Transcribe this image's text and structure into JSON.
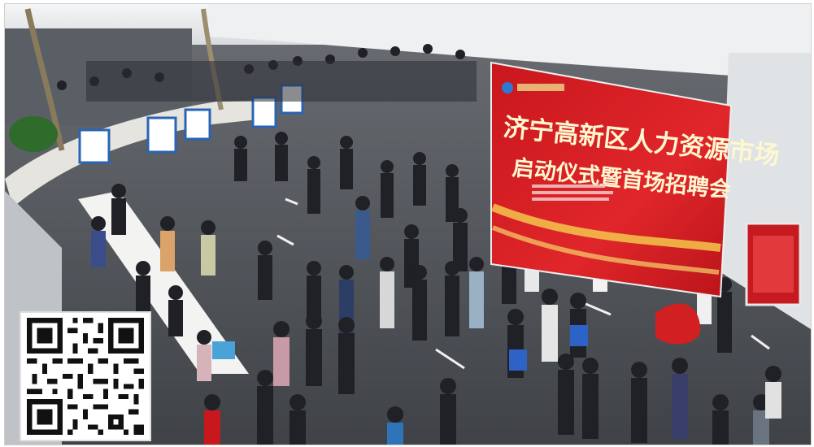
{
  "banner": {
    "line1": "济宁高新区人力资源市场",
    "line2": "启动仪式暨首场招聘会"
  },
  "colors": {
    "floor": "#4e5258",
    "banner_red": "#d41f24",
    "wall": "#e9ecef"
  },
  "icons": [
    "qr-code-icon",
    "banner-logo-icon"
  ]
}
